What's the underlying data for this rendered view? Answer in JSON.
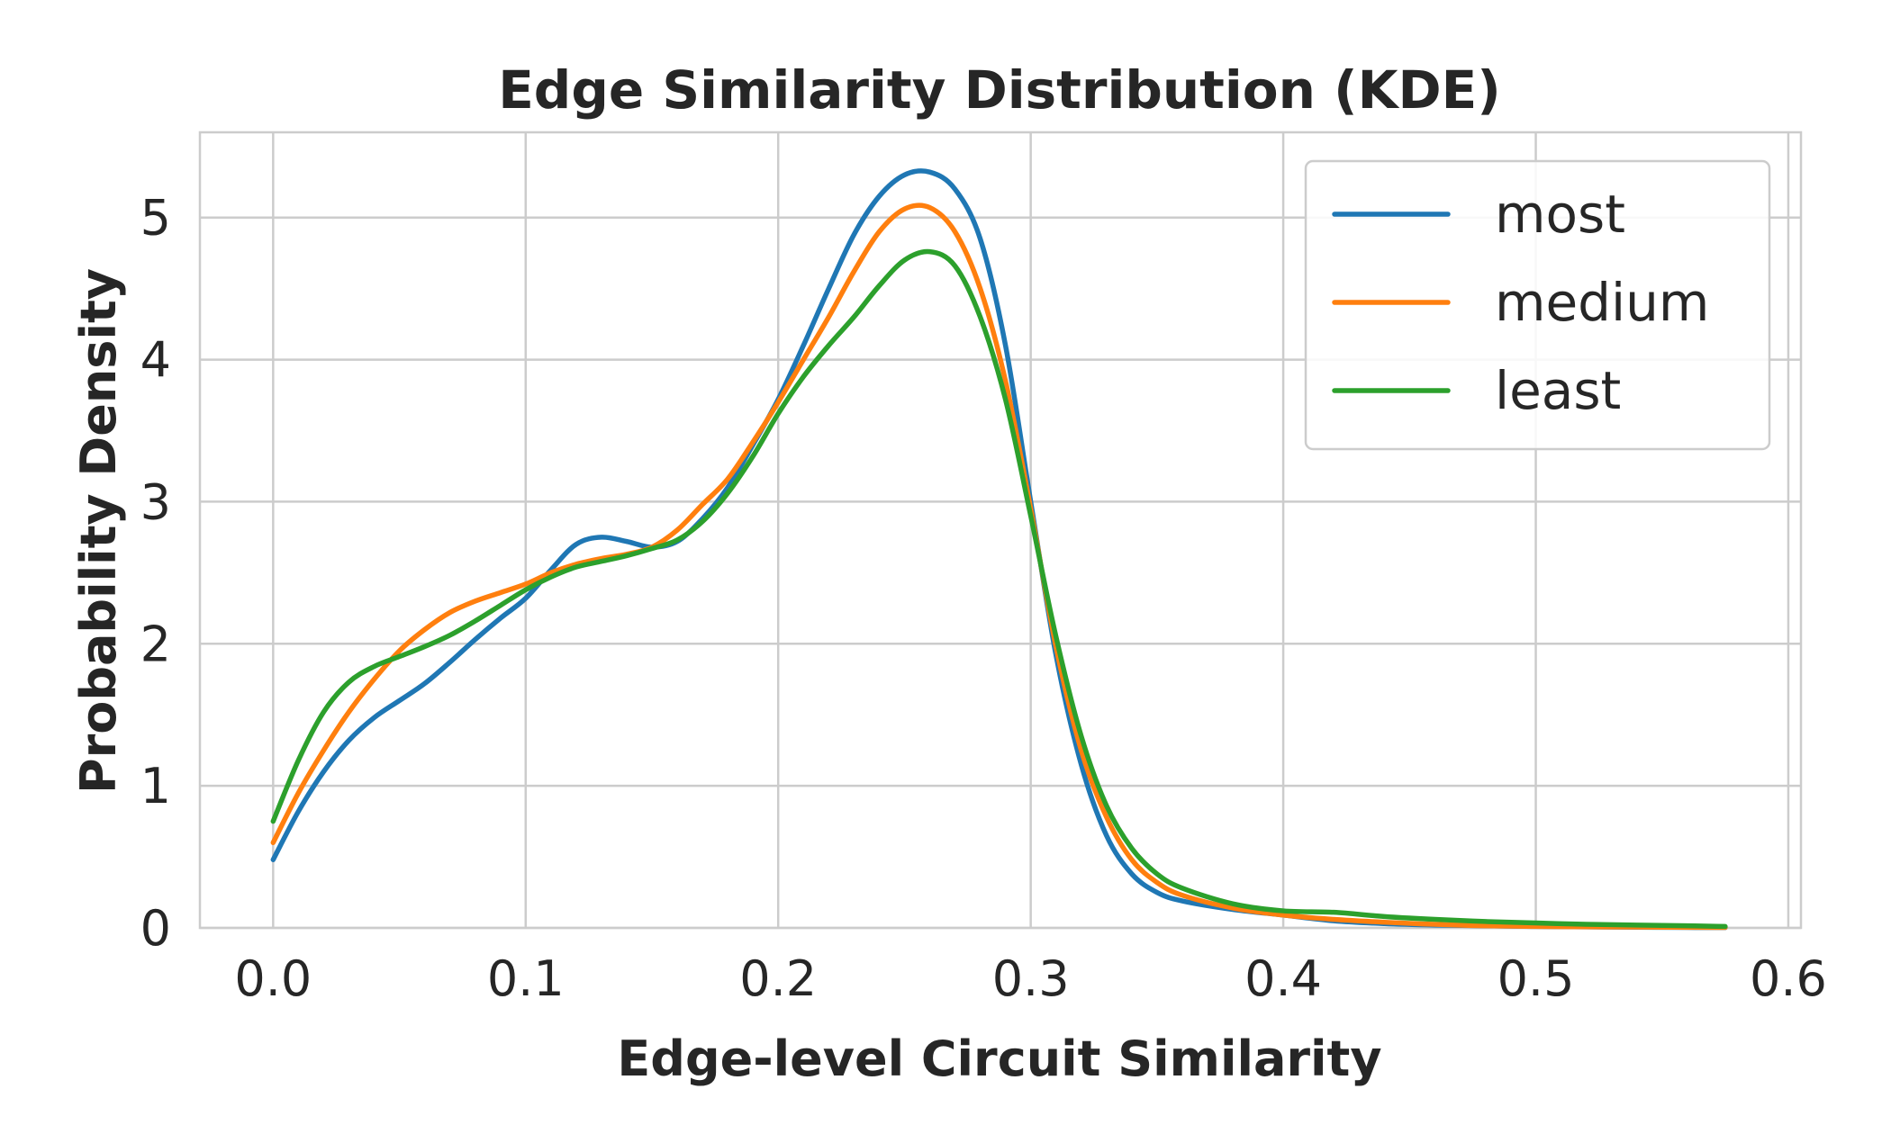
{
  "chart_data": {
    "type": "line",
    "title": "Edge Similarity Distribution (KDE)",
    "xlabel": "Edge-level Circuit Similarity",
    "ylabel": "Probability Density",
    "xlim": [
      -0.029,
      0.605
    ],
    "ylim": [
      0,
      5.6
    ],
    "xticks": [
      0.0,
      0.1,
      0.2,
      0.3,
      0.4,
      0.5,
      0.6
    ],
    "xtick_labels": [
      "0.0",
      "0.1",
      "0.2",
      "0.3",
      "0.4",
      "0.5",
      "0.6"
    ],
    "yticks": [
      0,
      1,
      2,
      3,
      4,
      5
    ],
    "ytick_labels": [
      "0",
      "1",
      "2",
      "3",
      "4",
      "5"
    ],
    "grid": true,
    "legend_position": "top-right",
    "series": [
      {
        "name": "most",
        "color": "#1f77b4",
        "x": [
          0.0,
          0.01,
          0.02,
          0.03,
          0.04,
          0.05,
          0.06,
          0.07,
          0.08,
          0.09,
          0.1,
          0.11,
          0.12,
          0.13,
          0.14,
          0.15,
          0.16,
          0.17,
          0.18,
          0.19,
          0.2,
          0.21,
          0.22,
          0.23,
          0.24,
          0.25,
          0.26,
          0.27,
          0.28,
          0.29,
          0.3,
          0.31,
          0.32,
          0.33,
          0.34,
          0.35,
          0.36,
          0.38,
          0.4,
          0.42,
          0.44,
          0.46,
          0.48,
          0.5,
          0.52,
          0.54,
          0.56,
          0.575
        ],
        "y": [
          0.48,
          0.82,
          1.1,
          1.32,
          1.48,
          1.6,
          1.72,
          1.87,
          2.03,
          2.18,
          2.32,
          2.52,
          2.7,
          2.75,
          2.72,
          2.68,
          2.72,
          2.88,
          3.1,
          3.4,
          3.72,
          4.1,
          4.5,
          4.88,
          5.15,
          5.3,
          5.32,
          5.2,
          4.85,
          4.1,
          3.0,
          1.92,
          1.15,
          0.65,
          0.38,
          0.25,
          0.19,
          0.13,
          0.09,
          0.05,
          0.03,
          0.02,
          0.015,
          0.01,
          0.007,
          0.005,
          0.003,
          0.002
        ]
      },
      {
        "name": "medium",
        "color": "#ff7f0e",
        "x": [
          0.0,
          0.01,
          0.02,
          0.03,
          0.04,
          0.05,
          0.06,
          0.07,
          0.08,
          0.09,
          0.1,
          0.11,
          0.12,
          0.13,
          0.14,
          0.15,
          0.16,
          0.17,
          0.18,
          0.19,
          0.2,
          0.21,
          0.22,
          0.23,
          0.24,
          0.25,
          0.26,
          0.27,
          0.28,
          0.29,
          0.3,
          0.31,
          0.32,
          0.33,
          0.34,
          0.35,
          0.36,
          0.38,
          0.4,
          0.42,
          0.44,
          0.46,
          0.48,
          0.5,
          0.52,
          0.54,
          0.56,
          0.575
        ],
        "y": [
          0.6,
          0.95,
          1.25,
          1.52,
          1.75,
          1.95,
          2.1,
          2.22,
          2.3,
          2.36,
          2.42,
          2.5,
          2.56,
          2.6,
          2.63,
          2.68,
          2.8,
          2.98,
          3.16,
          3.42,
          3.7,
          4.0,
          4.3,
          4.62,
          4.9,
          5.06,
          5.07,
          4.9,
          4.5,
          3.85,
          2.95,
          1.98,
          1.25,
          0.78,
          0.48,
          0.32,
          0.23,
          0.14,
          0.09,
          0.06,
          0.04,
          0.025,
          0.015,
          0.01,
          0.008,
          0.006,
          0.004,
          0.003
        ]
      },
      {
        "name": "least",
        "color": "#2ca02c",
        "x": [
          0.0,
          0.01,
          0.02,
          0.03,
          0.04,
          0.05,
          0.06,
          0.07,
          0.08,
          0.09,
          0.1,
          0.11,
          0.12,
          0.13,
          0.14,
          0.15,
          0.16,
          0.17,
          0.18,
          0.19,
          0.2,
          0.21,
          0.22,
          0.23,
          0.24,
          0.25,
          0.26,
          0.27,
          0.28,
          0.29,
          0.3,
          0.31,
          0.32,
          0.33,
          0.34,
          0.35,
          0.36,
          0.38,
          0.4,
          0.42,
          0.44,
          0.46,
          0.48,
          0.5,
          0.52,
          0.54,
          0.56,
          0.575
        ],
        "y": [
          0.75,
          1.18,
          1.52,
          1.73,
          1.84,
          1.91,
          1.98,
          2.06,
          2.16,
          2.27,
          2.38,
          2.47,
          2.54,
          2.58,
          2.62,
          2.67,
          2.73,
          2.86,
          3.06,
          3.32,
          3.62,
          3.88,
          4.1,
          4.3,
          4.52,
          4.7,
          4.76,
          4.66,
          4.3,
          3.72,
          2.9,
          2.05,
          1.35,
          0.86,
          0.56,
          0.38,
          0.28,
          0.17,
          0.12,
          0.11,
          0.08,
          0.06,
          0.045,
          0.035,
          0.025,
          0.02,
          0.015,
          0.01
        ]
      }
    ]
  }
}
